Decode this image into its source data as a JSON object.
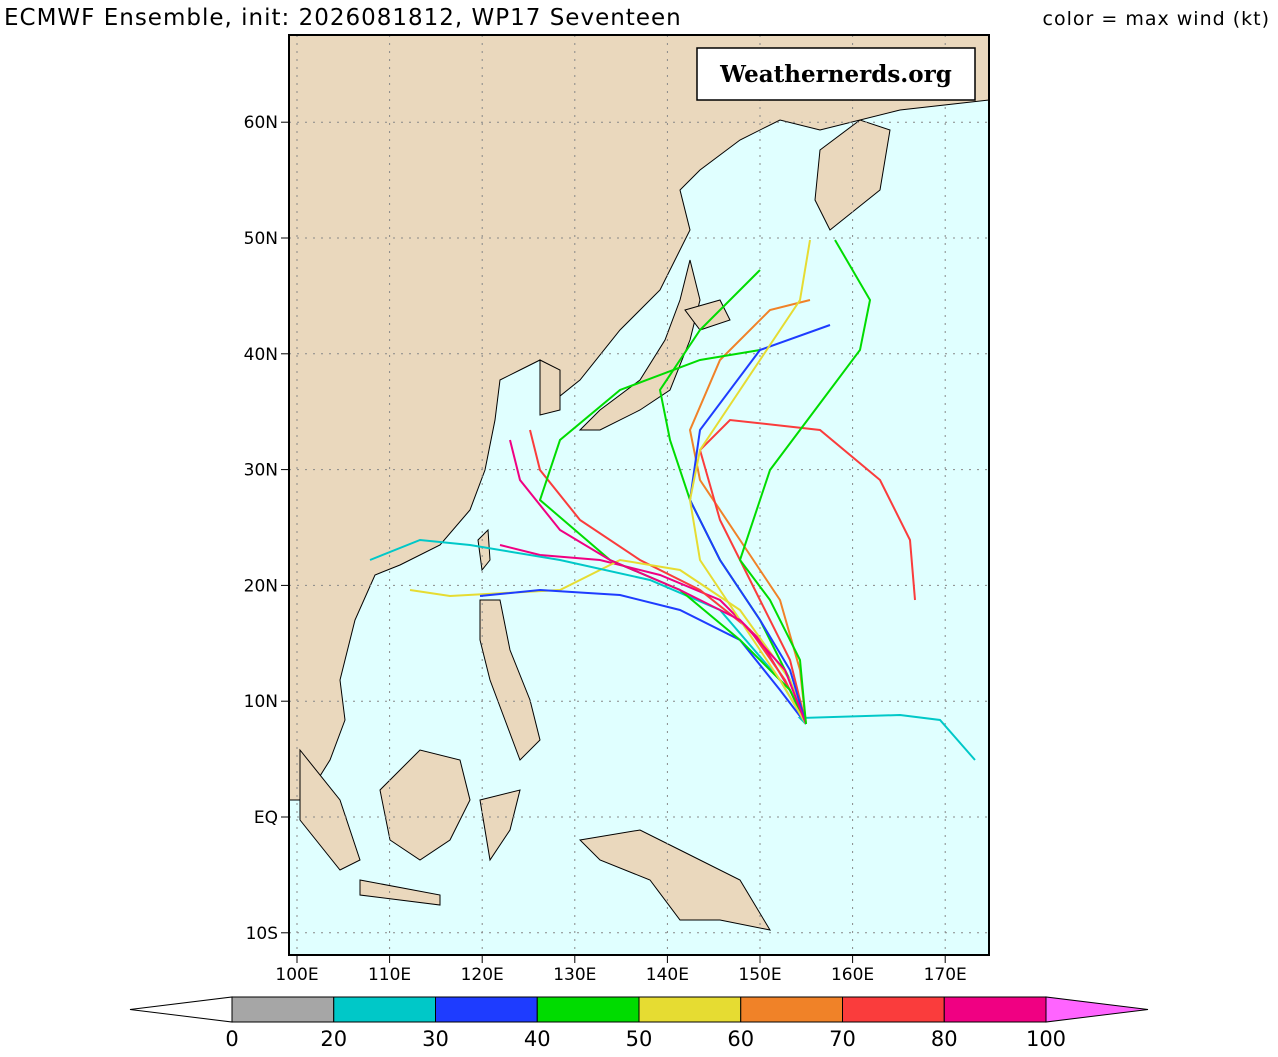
{
  "map": {
    "title": "ECMWF Ensemble, init: 2026081812, WP17 Seventeen",
    "subtitle": "color = max wind (kt)",
    "watermark": "Weathernerds.org",
    "lat_ticks": [
      {
        "value": 60,
        "label": "60N"
      },
      {
        "value": 50,
        "label": "50N"
      },
      {
        "value": 40,
        "label": "40N"
      },
      {
        "value": 30,
        "label": "30N"
      },
      {
        "value": 20,
        "label": "20N"
      },
      {
        "value": 10,
        "label": "10N"
      },
      {
        "value": 0,
        "label": "EQ"
      },
      {
        "value": -10,
        "label": "10S"
      }
    ],
    "lon_ticks": [
      {
        "value": 100,
        "label": "100E"
      },
      {
        "value": 110,
        "label": "110E"
      },
      {
        "value": 120,
        "label": "120E"
      },
      {
        "value": 130,
        "label": "130E"
      },
      {
        "value": 140,
        "label": "140E"
      },
      {
        "value": 150,
        "label": "150E"
      },
      {
        "value": 160,
        "label": "160E"
      },
      {
        "value": 170,
        "label": "170E"
      }
    ],
    "colorbar": {
      "bounds": [
        0,
        20,
        30,
        40,
        50,
        60,
        70,
        80,
        100
      ],
      "colors": [
        "#a6a6a6",
        "#00c8c8",
        "#1e3cff",
        "#00dc00",
        "#e6dc32",
        "#f08228",
        "#fa3c3c",
        "#f00082"
      ],
      "under_color": "#ffffff",
      "over_color": "#ff64ff"
    }
  }
}
